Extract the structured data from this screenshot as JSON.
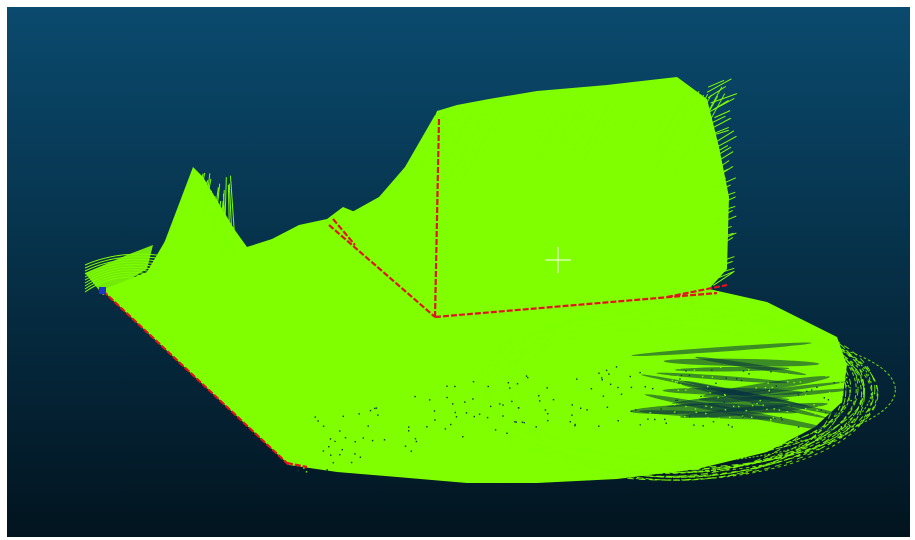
{
  "viewer": {
    "background_top": "#0a4a6e",
    "background_bottom": "#02141f",
    "point_color": "#7fff00",
    "edge_color": "#e0141e",
    "marker_color": "#2033c8",
    "crosshair_color": "#ffffff"
  },
  "icons": {
    "crosshair": "crosshair-icon",
    "vertex_marker": "vertex-marker-icon"
  }
}
